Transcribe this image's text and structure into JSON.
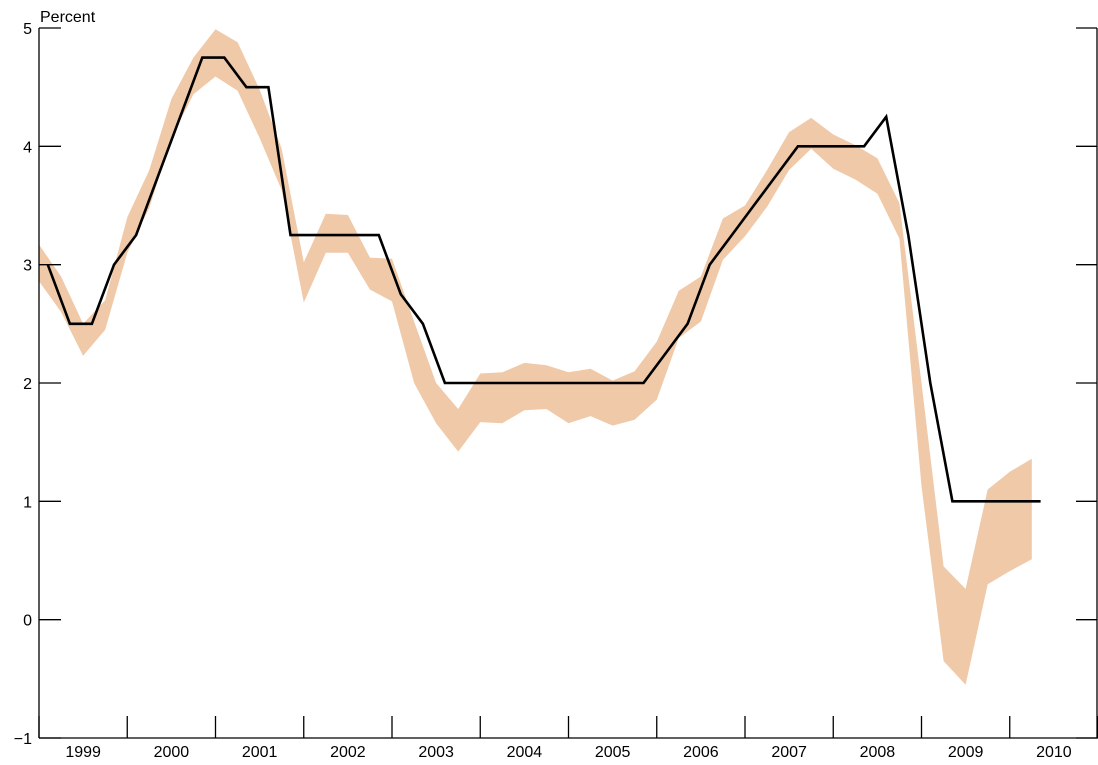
{
  "chart_data": {
    "type": "line",
    "unit_label": "Percent",
    "xlabel": "",
    "ylabel": "",
    "ylim": [
      -1,
      5
    ],
    "y_ticks": [
      -1,
      0,
      1,
      2,
      3,
      4,
      5
    ],
    "y_tick_labels": [
      "−1",
      "0",
      "1",
      "2",
      "3",
      "4",
      "5"
    ],
    "x_range": [
      1999.0,
      2011.0
    ],
    "year_labels": [
      "1999",
      "2000",
      "2001",
      "2002",
      "2003",
      "2004",
      "2005",
      "2006",
      "2007",
      "2008",
      "2009",
      "2010"
    ],
    "band_color": "#F0C9A8",
    "line_color": "#000000",
    "grid": false,
    "series": [
      {
        "style": "line",
        "points": [
          [
            1999.1,
            3.0
          ],
          [
            1999.35,
            2.5
          ],
          [
            1999.6,
            2.5
          ],
          [
            1999.85,
            3.0
          ],
          [
            2000.1,
            3.25
          ],
          [
            2000.35,
            3.75
          ],
          [
            2000.6,
            4.25
          ],
          [
            2000.85,
            4.75
          ],
          [
            2001.1,
            4.75
          ],
          [
            2001.35,
            4.5
          ],
          [
            2001.6,
            4.5
          ],
          [
            2001.85,
            3.25
          ],
          [
            2002.1,
            3.25
          ],
          [
            2002.35,
            3.25
          ],
          [
            2002.6,
            3.25
          ],
          [
            2002.85,
            3.25
          ],
          [
            2003.1,
            2.75
          ],
          [
            2003.35,
            2.5
          ],
          [
            2003.6,
            2.0
          ],
          [
            2003.85,
            2.0
          ],
          [
            2004.1,
            2.0
          ],
          [
            2004.35,
            2.0
          ],
          [
            2004.6,
            2.0
          ],
          [
            2004.85,
            2.0
          ],
          [
            2005.1,
            2.0
          ],
          [
            2005.35,
            2.0
          ],
          [
            2005.6,
            2.0
          ],
          [
            2005.85,
            2.0
          ],
          [
            2006.1,
            2.25
          ],
          [
            2006.35,
            2.5
          ],
          [
            2006.6,
            3.0
          ],
          [
            2006.85,
            3.25
          ],
          [
            2007.1,
            3.5
          ],
          [
            2007.35,
            3.75
          ],
          [
            2007.6,
            4.0
          ],
          [
            2007.85,
            4.0
          ],
          [
            2008.1,
            4.0
          ],
          [
            2008.35,
            4.0
          ],
          [
            2008.6,
            4.25
          ],
          [
            2008.85,
            3.25
          ],
          [
            2009.1,
            2.0
          ],
          [
            2009.35,
            1.0
          ],
          [
            2009.6,
            1.0
          ],
          [
            2009.85,
            1.0
          ],
          [
            2010.1,
            1.0
          ],
          [
            2010.35,
            1.0
          ]
        ]
      },
      {
        "style": "band",
        "upper": [
          [
            1999.0,
            3.17
          ],
          [
            1999.25,
            2.9
          ],
          [
            1999.5,
            2.5
          ],
          [
            1999.75,
            2.7
          ],
          [
            2000.0,
            3.4
          ],
          [
            2000.25,
            3.8
          ],
          [
            2000.5,
            4.4
          ],
          [
            2000.75,
            4.75
          ],
          [
            2001.0,
            4.99
          ],
          [
            2001.25,
            4.88
          ],
          [
            2001.5,
            4.48
          ],
          [
            2001.75,
            3.98
          ],
          [
            2002.0,
            3.02
          ],
          [
            2002.25,
            3.43
          ],
          [
            2002.5,
            3.42
          ],
          [
            2002.75,
            3.06
          ],
          [
            2003.0,
            3.05
          ],
          [
            2003.25,
            2.52
          ],
          [
            2003.5,
            2.0
          ],
          [
            2003.75,
            1.78
          ],
          [
            2004.0,
            2.08
          ],
          [
            2004.25,
            2.09
          ],
          [
            2004.5,
            2.17
          ],
          [
            2004.75,
            2.15
          ],
          [
            2005.0,
            2.09
          ],
          [
            2005.25,
            2.12
          ],
          [
            2005.5,
            2.02
          ],
          [
            2005.75,
            2.1
          ],
          [
            2006.0,
            2.35
          ],
          [
            2006.25,
            2.78
          ],
          [
            2006.5,
            2.9
          ],
          [
            2006.75,
            3.39
          ],
          [
            2007.0,
            3.5
          ],
          [
            2007.25,
            3.8
          ],
          [
            2007.5,
            4.12
          ],
          [
            2007.75,
            4.24
          ],
          [
            2008.0,
            4.1
          ],
          [
            2008.25,
            4.01
          ],
          [
            2008.5,
            3.9
          ],
          [
            2008.75,
            3.52
          ],
          [
            2009.0,
            2.0
          ],
          [
            2009.25,
            0.45
          ],
          [
            2009.5,
            0.26
          ],
          [
            2009.75,
            1.1
          ],
          [
            2010.0,
            1.25
          ],
          [
            2010.25,
            1.36
          ]
        ],
        "lower": [
          [
            1999.0,
            2.86
          ],
          [
            1999.25,
            2.6
          ],
          [
            1999.5,
            2.23
          ],
          [
            1999.75,
            2.45
          ],
          [
            2000.0,
            3.1
          ],
          [
            2000.25,
            3.48
          ],
          [
            2000.5,
            4.07
          ],
          [
            2000.75,
            4.44
          ],
          [
            2001.0,
            4.59
          ],
          [
            2001.25,
            4.47
          ],
          [
            2001.5,
            4.07
          ],
          [
            2001.75,
            3.63
          ],
          [
            2002.0,
            2.68
          ],
          [
            2002.25,
            3.1
          ],
          [
            2002.5,
            3.1
          ],
          [
            2002.75,
            2.79
          ],
          [
            2003.0,
            2.69
          ],
          [
            2003.25,
            2.0
          ],
          [
            2003.5,
            1.66
          ],
          [
            2003.75,
            1.42
          ],
          [
            2004.0,
            1.67
          ],
          [
            2004.25,
            1.66
          ],
          [
            2004.5,
            1.77
          ],
          [
            2004.75,
            1.78
          ],
          [
            2005.0,
            1.66
          ],
          [
            2005.25,
            1.72
          ],
          [
            2005.5,
            1.64
          ],
          [
            2005.75,
            1.69
          ],
          [
            2006.0,
            1.86
          ],
          [
            2006.25,
            2.38
          ],
          [
            2006.5,
            2.52
          ],
          [
            2006.75,
            3.04
          ],
          [
            2007.0,
            3.24
          ],
          [
            2007.25,
            3.49
          ],
          [
            2007.5,
            3.8
          ],
          [
            2007.75,
            3.98
          ],
          [
            2008.0,
            3.81
          ],
          [
            2008.25,
            3.72
          ],
          [
            2008.5,
            3.6
          ],
          [
            2008.75,
            3.22
          ],
          [
            2009.0,
            1.13
          ],
          [
            2009.25,
            -0.35
          ],
          [
            2009.5,
            -0.55
          ],
          [
            2009.75,
            0.3
          ],
          [
            2010.0,
            0.41
          ],
          [
            2010.25,
            0.51
          ]
        ]
      }
    ]
  }
}
